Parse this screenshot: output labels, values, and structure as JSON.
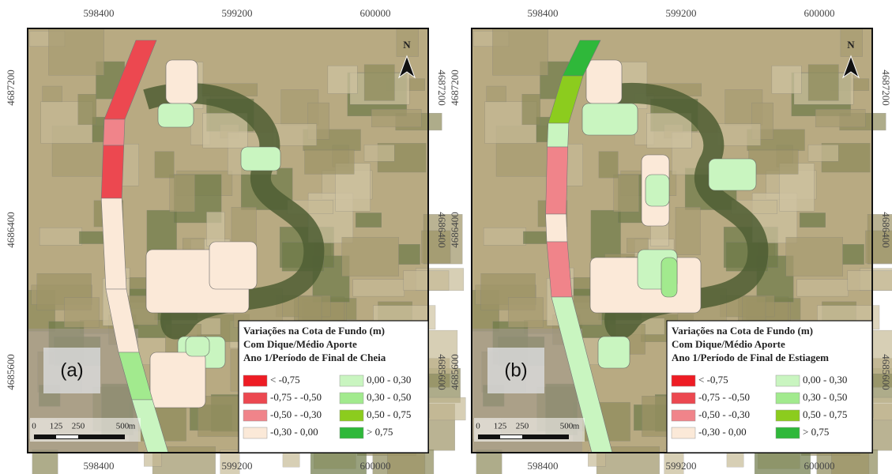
{
  "panels": [
    {
      "label": "(a)",
      "x_ticks": [
        "598400",
        "599200",
        "600000"
      ],
      "y_ticks": [
        "4687200",
        "4686400",
        "4685600"
      ],
      "north": "N",
      "scale": [
        "0",
        "125",
        "250",
        "500",
        "m"
      ],
      "legend": {
        "title": [
          "Variações na Cota de Fundo (m)",
          "Com Dique/Médio Aporte",
          "Ano 1/Período de Final de Cheia"
        ],
        "items": [
          {
            "label": "< -0,75",
            "color": "#ee1c24"
          },
          {
            "label": "-0,75 - -0,50",
            "color": "#ec4850"
          },
          {
            "label": "-0,50 - -0,30",
            "color": "#f0848a"
          },
          {
            "label": "-0,30 - 0,00",
            "color": "#fbe9d8"
          },
          {
            "label": "0,00 - 0,30",
            "color": "#c9f5c0"
          },
          {
            "label": "0,30 - 0,50",
            "color": "#a2ea8e"
          },
          {
            "label": "0,50 - 0,75",
            "color": "#8ccc1e"
          },
          {
            "label": "> 0,75",
            "color": "#2fb83a"
          }
        ]
      }
    },
    {
      "label": "(b)",
      "x_ticks": [
        "598400",
        "599200",
        "600000"
      ],
      "y_ticks": [
        "4687200",
        "4686400",
        "4685600"
      ],
      "north": "N",
      "scale": [
        "0",
        "125",
        "250",
        "500",
        "m"
      ],
      "legend": {
        "title": [
          "Variações na Cota de Fundo (m)",
          "Com Dique/Médio Aporte",
          "Ano 1/Período de Final de Estiagem"
        ],
        "items": [
          {
            "label": "< -0,75",
            "color": "#ee1c24"
          },
          {
            "label": "-0,75 - -0,50",
            "color": "#ec4850"
          },
          {
            "label": "-0,50 - -0,30",
            "color": "#f0848a"
          },
          {
            "label": "-0,30 - 0,00",
            "color": "#fbe9d8"
          },
          {
            "label": "0,00 - 0,30",
            "color": "#c9f5c0"
          },
          {
            "label": "0,30 - 0,50",
            "color": "#a2ea8e"
          },
          {
            "label": "0,50 - 0,75",
            "color": "#8ccc1e"
          },
          {
            "label": "> 0,75",
            "color": "#2fb83a"
          }
        ]
      }
    }
  ]
}
